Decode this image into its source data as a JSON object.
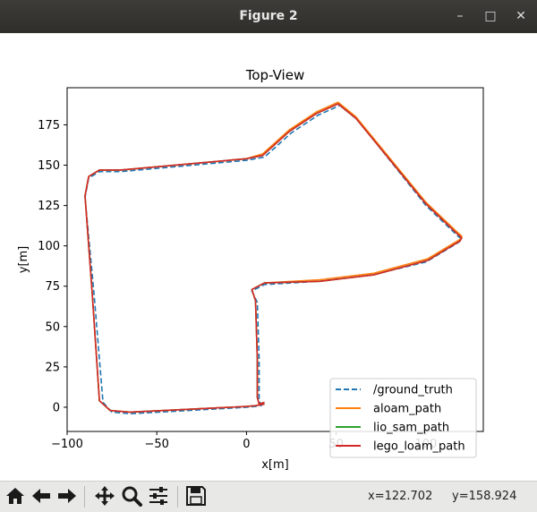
{
  "window": {
    "title": "Figure 2",
    "buttons": [
      "minimize",
      "maximize",
      "close"
    ]
  },
  "toolbar": {
    "buttons": [
      "home-icon",
      "back-icon",
      "forward-icon",
      "pan-icon",
      "zoom-icon",
      "configure-subplots-icon",
      "save-icon"
    ],
    "x_readout": "x=122.702",
    "y_readout": "y=158.924"
  },
  "chart_data": {
    "type": "line",
    "title": "Top-View",
    "xlabel": "x[m]",
    "ylabel": "y[m]",
    "xlim": [
      -100,
      132
    ],
    "ylim": [
      -15,
      198
    ],
    "xticks": [
      -100,
      -50,
      0,
      50,
      100
    ],
    "xtick_labels": [
      "−100",
      "−50",
      "0",
      "50",
      "100"
    ],
    "yticks": [
      0,
      25,
      50,
      75,
      100,
      125,
      150,
      175
    ],
    "ytick_labels": [
      "0",
      "25",
      "50",
      "75",
      "100",
      "125",
      "150",
      "175"
    ],
    "grid": false,
    "legend_position": "lower-right",
    "series": [
      {
        "name": "/ground_truth",
        "color": "#1f77b4",
        "style": "dashed",
        "x": [
          10,
          5,
          0,
          -65,
          -75,
          -80,
          -85,
          -90,
          -88,
          -82,
          -70,
          -10,
          0,
          10,
          15,
          25,
          40,
          52,
          62,
          100,
          117,
          120,
          118,
          100,
          70,
          40,
          10,
          3,
          6,
          7,
          7,
          8,
          10
        ],
        "y": [
          2,
          0.5,
          0,
          -4,
          -3,
          3,
          70,
          130,
          142,
          146,
          146,
          152,
          153,
          155,
          160,
          170,
          181,
          187,
          178,
          125,
          107,
          104,
          102,
          90,
          82,
          78,
          76,
          72,
          65,
          30,
          5,
          1,
          2
        ]
      },
      {
        "name": "aloam_path",
        "color": "#ff7f0e",
        "style": "solid",
        "x": [
          10,
          5,
          0,
          -65,
          -76,
          -82,
          -86,
          -90,
          -88,
          -82,
          -70,
          -10,
          0,
          9,
          14,
          24,
          39,
          51,
          61,
          100,
          117,
          120,
          119,
          101,
          71,
          41,
          10,
          3,
          5,
          6,
          6,
          7,
          10
        ],
        "y": [
          2,
          1,
          0.5,
          -3,
          -2,
          4,
          70,
          131,
          143,
          147,
          147,
          153,
          154,
          157,
          162,
          172,
          183,
          189,
          180,
          127,
          109,
          106,
          104,
          92,
          83,
          79,
          77,
          73,
          66,
          30,
          6,
          2,
          3
        ]
      },
      {
        "name": "lio_sam_path",
        "color": "#2ca02c",
        "style": "solid",
        "x": [
          10,
          5,
          0,
          -65,
          -76,
          -82,
          -86,
          -90,
          -88,
          -82,
          -70,
          -10,
          0,
          9,
          14,
          24,
          39,
          51,
          61,
          100,
          117,
          120,
          119,
          101,
          71,
          41,
          10,
          3,
          5,
          6,
          6,
          7,
          10
        ],
        "y": [
          2,
          1,
          0.5,
          -3,
          -2,
          4,
          70,
          131,
          143,
          147,
          147,
          153,
          154,
          156,
          161,
          171,
          182,
          188,
          179,
          126,
          108,
          105,
          103,
          91,
          82,
          78,
          77,
          73,
          66,
          30,
          6,
          2,
          3
        ]
      },
      {
        "name": "lego_loam_path",
        "color": "#d62728",
        "style": "solid",
        "x": [
          10,
          5,
          0,
          -65,
          -76,
          -82,
          -86,
          -90,
          -88,
          -82,
          -70,
          -10,
          0,
          9,
          14,
          24,
          39,
          51,
          61,
          100,
          117,
          120,
          119,
          101,
          71,
          41,
          10,
          3,
          5,
          6,
          6,
          7,
          10
        ],
        "y": [
          2,
          1,
          0.5,
          -3,
          -2,
          4,
          70,
          131,
          143,
          147,
          147,
          153,
          154,
          156,
          161,
          171,
          182,
          188,
          179,
          126,
          108,
          105,
          103,
          91,
          82,
          78,
          77,
          73,
          66,
          30,
          6,
          2,
          3
        ]
      }
    ]
  }
}
